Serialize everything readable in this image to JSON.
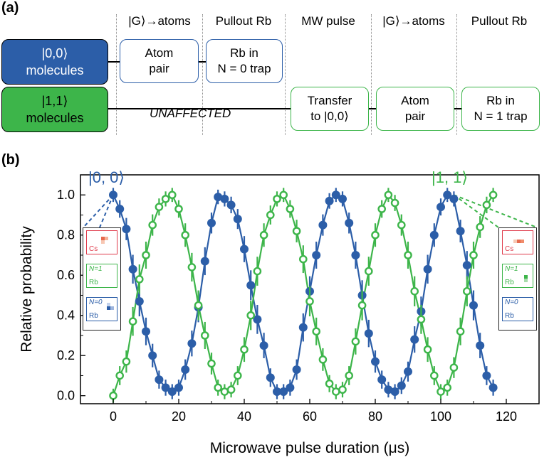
{
  "panel_a": {
    "label": "(a)",
    "stages": [
      {
        "header": "|G⟩→atoms"
      },
      {
        "header": "Pullout Rb"
      },
      {
        "header": "MW pulse"
      },
      {
        "header": "|G⟩→atoms"
      },
      {
        "header": "Pullout Rb"
      }
    ],
    "rows": [
      {
        "state": "|0,0⟩",
        "molecules": "molecules",
        "color": "#2c5ea8",
        "boxes": [
          {
            "line1": "Atom",
            "line2": "pair"
          },
          {
            "line1": "Rb in",
            "line2": "N = 0 trap"
          }
        ]
      },
      {
        "state": "|1,1⟩",
        "molecules": "molecules",
        "color": "#3db54a",
        "unaffected": "UNAFFECTED",
        "boxes": [
          {
            "line1": "Transfer",
            "line2": "to |0,0⟩"
          },
          {
            "line1": "Atom",
            "line2": "pair"
          },
          {
            "line1": "Rb in",
            "line2": "N = 1 trap"
          }
        ]
      }
    ]
  },
  "panel_b": {
    "label": "(b)",
    "insets": {
      "left": {
        "cs": "Cs",
        "n1": "N=1",
        "n1_rb": "Rb",
        "n0": "N=0",
        "n0_rb": "Rb"
      },
      "right": {
        "cs": "Cs",
        "n1": "N=1",
        "n1_rb": "Rb",
        "n0": "N=0",
        "n0_rb": "Rb"
      }
    }
  },
  "chart_data": {
    "type": "scatter",
    "xlabel": "Microwave pulse duration (μs)",
    "ylabel": "Relative probability",
    "xlim": [
      -10,
      130
    ],
    "ylim": [
      -0.04,
      1.1
    ],
    "xticks": [
      0,
      20,
      40,
      60,
      80,
      100,
      120
    ],
    "yticks": [
      0.0,
      0.2,
      0.4,
      0.6,
      0.8,
      1.0
    ],
    "grid": false,
    "annotations": [
      {
        "text": "|0, 0⟩",
        "color": "#2c5ea8"
      },
      {
        "text": "|1, 1⟩",
        "color": "#3db54a"
      }
    ],
    "series": [
      {
        "name": "|0, 0⟩",
        "color": "#2c5ea8",
        "marker": "filled-circle",
        "x": [
          0,
          2,
          4,
          6,
          8,
          10,
          12,
          14,
          16,
          18,
          20,
          22,
          24,
          26,
          28,
          30,
          32,
          34,
          36,
          38,
          40,
          42,
          44,
          46,
          48,
          50,
          52,
          54,
          56,
          58,
          60,
          62,
          64,
          66,
          68,
          70,
          72,
          74,
          76,
          78,
          80,
          82,
          84,
          86,
          88,
          90,
          92,
          94,
          96,
          98,
          100,
          102,
          104,
          106,
          108,
          110,
          112,
          114,
          116
        ],
        "y": [
          1.0,
          0.93,
          0.83,
          0.63,
          0.47,
          0.32,
          0.2,
          0.08,
          0.04,
          0.02,
          0.04,
          0.13,
          0.26,
          0.44,
          0.67,
          0.86,
          0.99,
          0.98,
          0.95,
          0.88,
          0.73,
          0.55,
          0.38,
          0.25,
          0.09,
          0.02,
          0.02,
          0.04,
          0.13,
          0.34,
          0.52,
          0.7,
          0.85,
          0.97,
          1.0,
          0.98,
          0.86,
          0.7,
          0.5,
          0.31,
          0.17,
          0.08,
          0.03,
          0.02,
          0.05,
          0.12,
          0.28,
          0.42,
          0.63,
          0.8,
          0.94,
          1.0,
          0.98,
          0.82,
          0.65,
          0.45,
          0.25,
          0.1,
          0.04
        ]
      },
      {
        "name": "|1, 1⟩",
        "color": "#3db54a",
        "marker": "open-circle",
        "x": [
          0,
          2,
          4,
          6,
          8,
          10,
          12,
          14,
          16,
          18,
          20,
          22,
          24,
          26,
          28,
          30,
          32,
          34,
          36,
          38,
          40,
          42,
          44,
          46,
          48,
          50,
          52,
          54,
          56,
          58,
          60,
          62,
          64,
          66,
          68,
          70,
          72,
          74,
          76,
          78,
          80,
          82,
          84,
          86,
          88,
          90,
          92,
          94,
          96,
          98,
          100,
          102,
          104,
          106,
          108,
          110,
          112,
          114,
          116
        ],
        "y": [
          0.0,
          0.1,
          0.17,
          0.37,
          0.58,
          0.7,
          0.85,
          0.94,
          0.98,
          1.0,
          0.93,
          0.8,
          0.64,
          0.45,
          0.3,
          0.16,
          0.04,
          0.02,
          0.03,
          0.1,
          0.23,
          0.4,
          0.62,
          0.8,
          0.9,
          0.98,
          1.0,
          0.93,
          0.82,
          0.68,
          0.47,
          0.32,
          0.18,
          0.06,
          0.02,
          0.03,
          0.1,
          0.27,
          0.45,
          0.62,
          0.8,
          0.93,
          1.0,
          0.96,
          0.85,
          0.7,
          0.52,
          0.38,
          0.23,
          0.1,
          0.02,
          0.04,
          0.14,
          0.32,
          0.52,
          0.7,
          0.84,
          0.95,
          1.0
        ]
      }
    ]
  }
}
